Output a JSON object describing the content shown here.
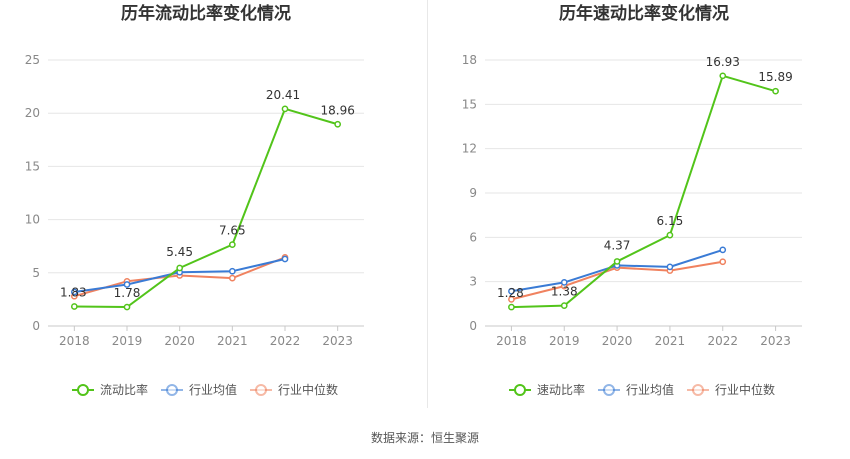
{
  "source_note": "数据来源：恒生聚源",
  "colors": {
    "main": "#52c41a",
    "mean": "#3a7bd5",
    "median": "#f0825f",
    "grid": "#e6e6e6",
    "axis": "#c8c8c8"
  },
  "chart_data": [
    {
      "type": "line",
      "title": "历年流动比率变化情况",
      "categories": [
        "2018",
        "2019",
        "2020",
        "2021",
        "2022",
        "2023"
      ],
      "ylim": [
        0,
        25
      ],
      "yticks": [
        0,
        5,
        10,
        15,
        20,
        25
      ],
      "grid": true,
      "legend_position": "bottom",
      "series": [
        {
          "name": "流动比率",
          "role": "main",
          "values": [
            1.83,
            1.78,
            5.45,
            7.65,
            20.41,
            18.96
          ],
          "labels": [
            "1.83",
            "1.78",
            "5.45",
            "7.65",
            "20.41",
            "18.96"
          ]
        },
        {
          "name": "行业均值",
          "role": "mean",
          "values": [
            3.2,
            3.9,
            5.05,
            5.15,
            6.3,
            null
          ]
        },
        {
          "name": "行业中位数",
          "role": "median",
          "values": [
            2.8,
            4.2,
            4.75,
            4.5,
            6.45,
            null
          ]
        }
      ]
    },
    {
      "type": "line",
      "title": "历年速动比率变化情况",
      "categories": [
        "2018",
        "2019",
        "2020",
        "2021",
        "2022",
        "2023"
      ],
      "ylim": [
        0,
        18
      ],
      "yticks": [
        0,
        3,
        6,
        9,
        12,
        15,
        18
      ],
      "grid": true,
      "legend_position": "bottom",
      "series": [
        {
          "name": "速动比率",
          "role": "main",
          "values": [
            1.28,
            1.38,
            4.37,
            6.15,
            16.93,
            15.89
          ],
          "labels": [
            "1.28",
            "1.38",
            "4.37",
            "6.15",
            "16.93",
            "15.89"
          ]
        },
        {
          "name": "行业均值",
          "role": "mean",
          "values": [
            2.35,
            2.95,
            4.1,
            4.0,
            5.15,
            null
          ]
        },
        {
          "name": "行业中位数",
          "role": "median",
          "values": [
            1.8,
            2.7,
            3.95,
            3.75,
            4.35,
            null
          ]
        }
      ]
    }
  ]
}
